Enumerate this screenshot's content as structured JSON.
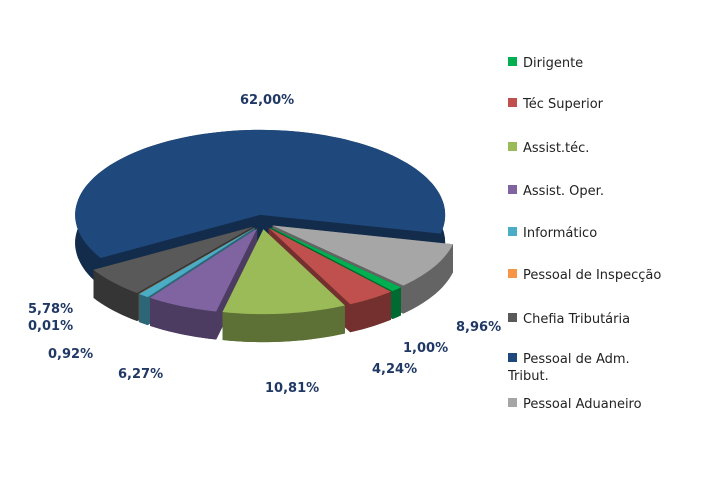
{
  "chart_data": {
    "type": "pie",
    "categories": [
      "Dirigente",
      "Téc Superior",
      "Assist.téc.",
      "Assist. Oper.",
      "Informático",
      "Pessoal de Inspecção",
      "Chefia Tributária",
      "Pessoal de Adm. Tribut.",
      "Pessoal Aduaneiro"
    ],
    "values": [
      1.0,
      4.24,
      10.81,
      6.27,
      0.92,
      0.01,
      5.78,
      62.0,
      8.96
    ],
    "value_labels": [
      "1,00%",
      "4,24%",
      "10,81%",
      "6,27%",
      "0,92%",
      "0,01%",
      "5,78%",
      "62,00%",
      "8,96%"
    ],
    "colors": [
      "#00b050",
      "#c0504d",
      "#9bbb59",
      "#8064a2",
      "#4bacc6",
      "#f79646",
      "#595959",
      "#1f497d",
      "#a6a6a6"
    ],
    "legend": "right"
  }
}
